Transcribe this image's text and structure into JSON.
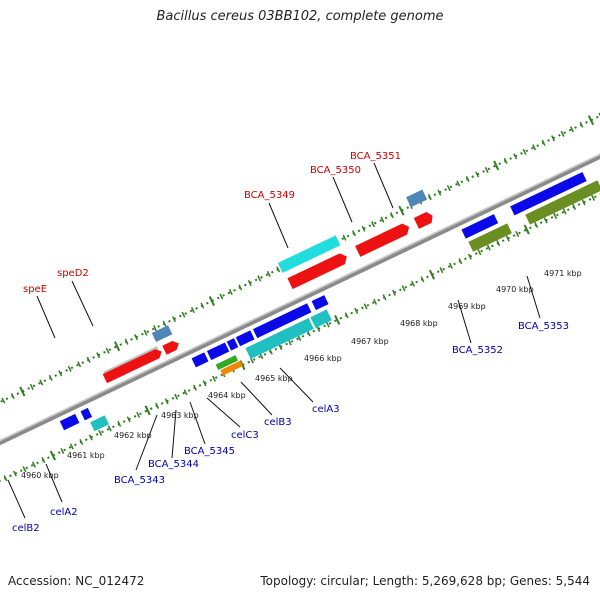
{
  "header": {
    "title": "Bacillus cereus 03BB102, complete genome"
  },
  "footer": {
    "accession": "Accession: NC_012472",
    "summary": "Topology: circular; Length: 5,269,628 bp; Genes: 5,544"
  },
  "colors": {
    "forward_label": "#cc0000",
    "reverse_label": "#0000aa",
    "backbone": "#8a8a8a",
    "tick": "#2e7d1e"
  },
  "kbp_labels": [
    "4960 kbp",
    "4961 kbp",
    "4962 kbp",
    "4963 kbp",
    "4964 kbp",
    "4965 kbp",
    "4966 kbp",
    "4967 kbp",
    "4968 kbp",
    "4969 kbp",
    "4970 kbp",
    "4971 kbp"
  ],
  "forward_gene_labels": [
    "speE",
    "speD2",
    "BCA_5349",
    "BCA_5350",
    "BCA_5351"
  ],
  "reverse_gene_labels": [
    "celB2",
    "celA2",
    "BCA_5343",
    "BCA_5344",
    "BCA_5345",
    "celC3",
    "celB3",
    "celA3",
    "BCA_5352",
    "BCA_5353"
  ]
}
